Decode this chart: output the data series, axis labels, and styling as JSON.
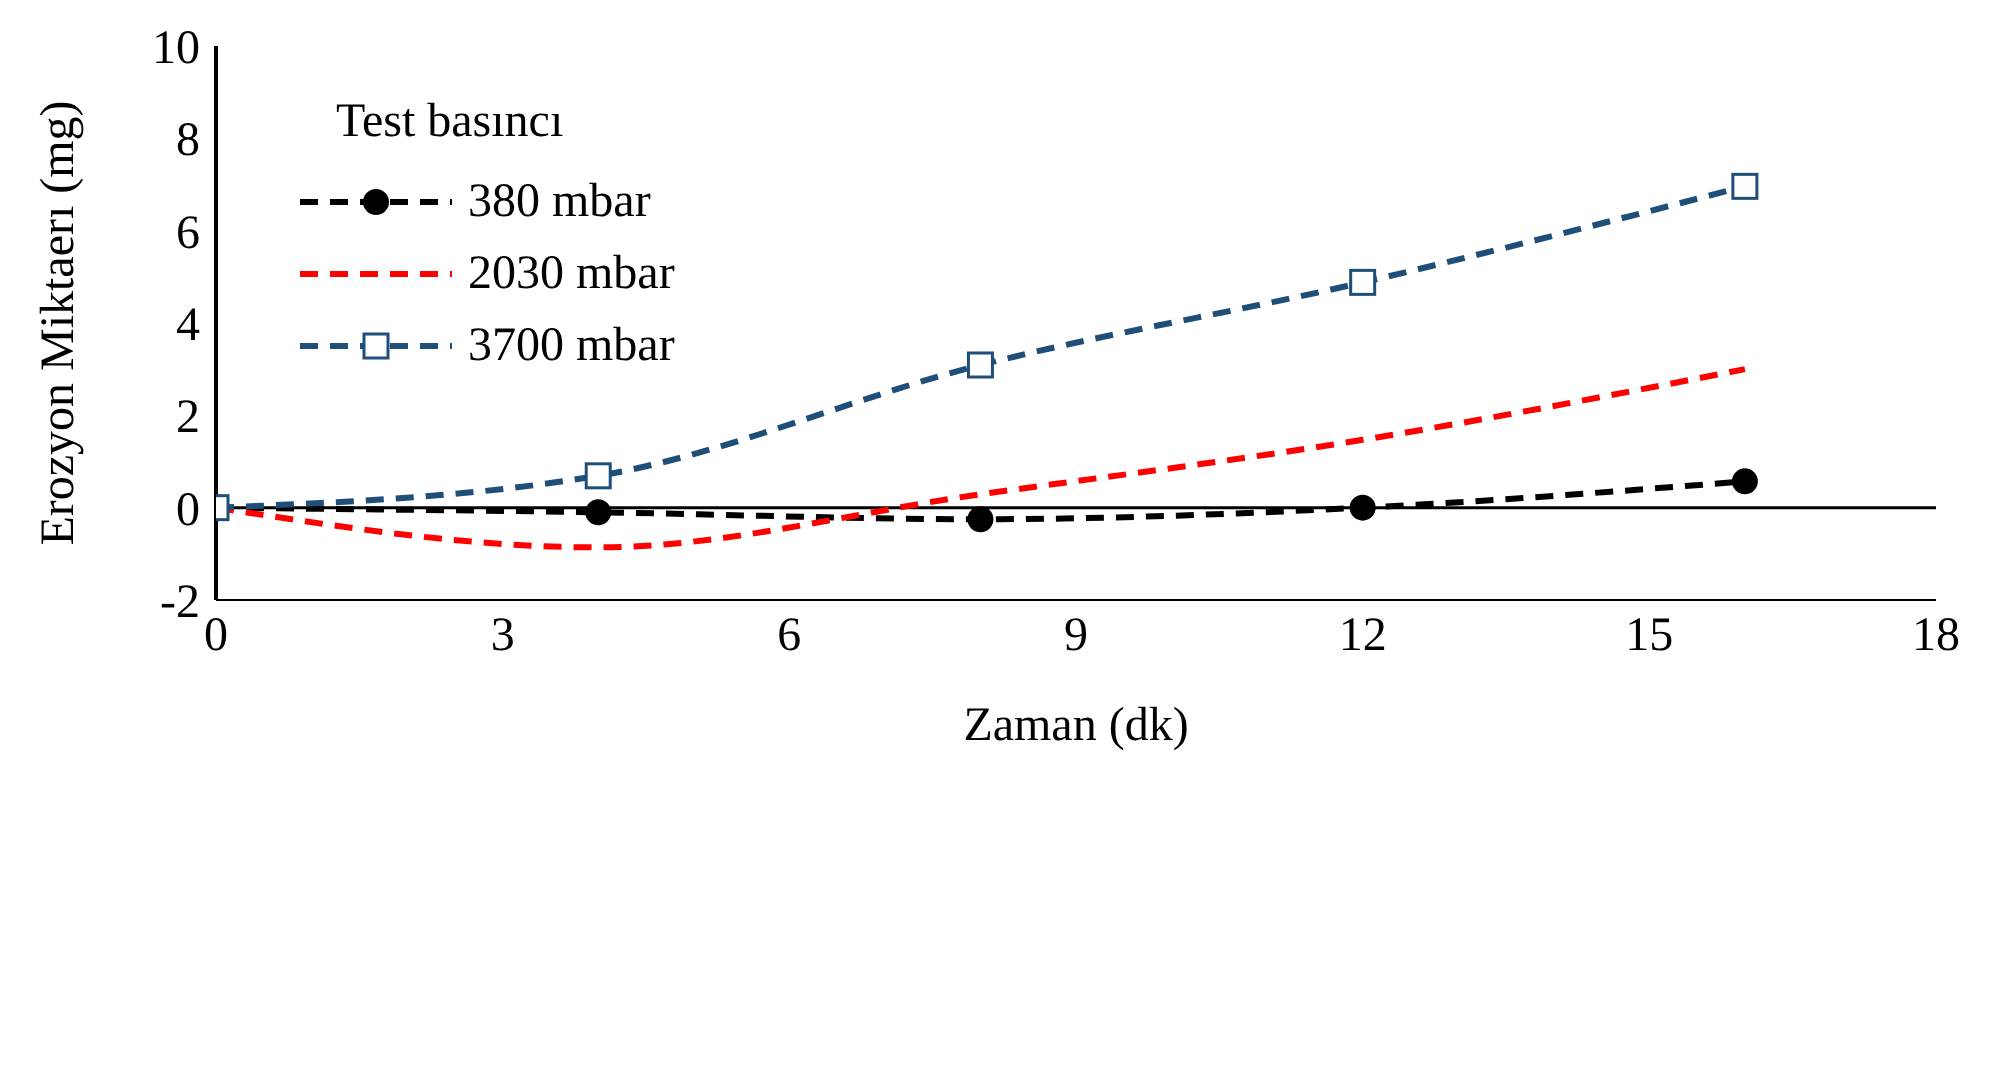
{
  "chart_data": {
    "type": "line",
    "xlabel": "Zaman (dk)",
    "ylabel": "Erozyon Miktaerı (mg)",
    "legend_title": "Test basıncı",
    "legend": "top left",
    "grid": false,
    "x": [
      0,
      4,
      8,
      12,
      16
    ],
    "series": [
      {
        "name": "380 mbar",
        "color": "#000000",
        "values": [
          0,
          -0.1,
          -0.25,
          0,
          0.57
        ],
        "marker": "circle",
        "line_style": "dashed"
      },
      {
        "name": "2030 mbar",
        "color": "#ff0000",
        "values": [
          0,
          -0.86,
          0.29,
          1.47,
          3.0
        ],
        "marker": "none",
        "line_style": "dashed"
      },
      {
        "name": "3700 mbar",
        "color": "#1f4e79",
        "values": [
          0,
          0.69,
          3.09,
          4.88,
          6.96
        ],
        "marker": "square",
        "line_style": "dashed"
      }
    ],
    "xlim": [
      0,
      18
    ],
    "xticks": [
      0,
      3,
      6,
      9,
      12,
      15,
      18
    ],
    "ylim": [
      -2,
      10
    ],
    "yticks": [
      -2,
      0,
      2,
      4,
      6,
      8,
      10
    ],
    "ref_lines": [
      {
        "axis": "y",
        "value": 0,
        "color": "#000000",
        "line_style": "solid"
      }
    ]
  }
}
